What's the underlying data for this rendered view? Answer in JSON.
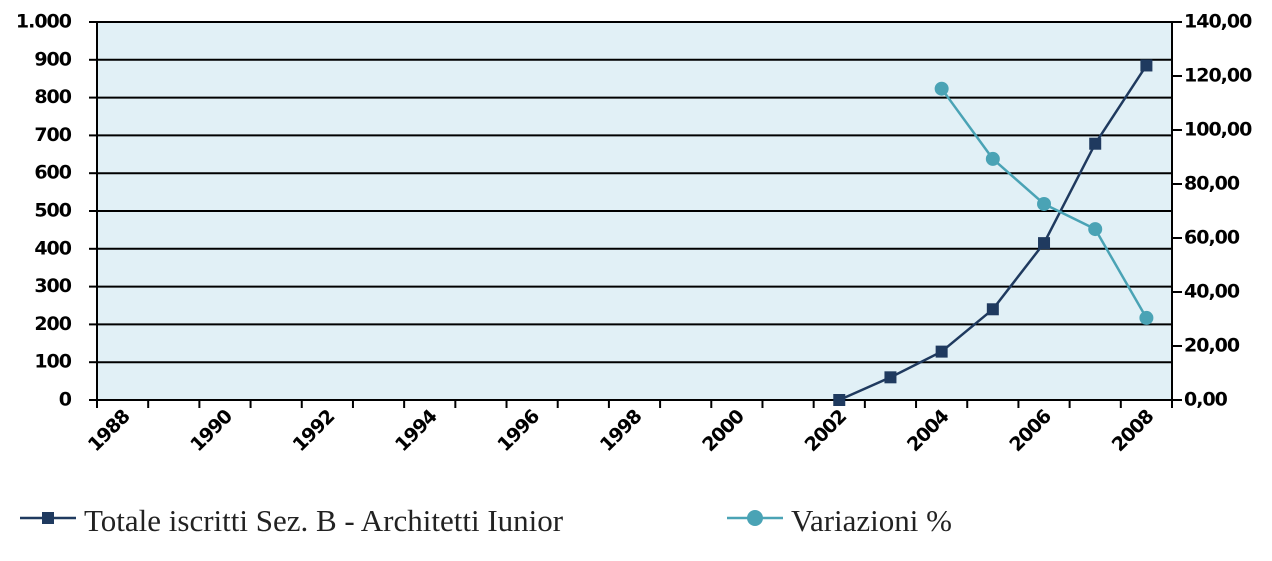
{
  "chart_data": {
    "type": "line",
    "categories": [
      "1988",
      null,
      "1990",
      null,
      "1992",
      null,
      "1994",
      null,
      "1996",
      null,
      "1998",
      null,
      "2000",
      null,
      "2002",
      null,
      "2004",
      null,
      "2006",
      null,
      "2008"
    ],
    "series": [
      {
        "name": "Totale iscritti Sez. B - Architetti Iunior",
        "color": "#1f3a5f",
        "marker": "square",
        "values": [
          null,
          null,
          null,
          null,
          null,
          null,
          null,
          null,
          null,
          null,
          null,
          null,
          null,
          null,
          0,
          60,
          128,
          240,
          415,
          678,
          885
        ]
      },
      {
        "name": "Variazioni %",
        "color": "#4aa3b5",
        "marker": "circle",
        "axis": "y2",
        "values": [
          null,
          null,
          null,
          null,
          null,
          null,
          null,
          null,
          null,
          null,
          null,
          null,
          null,
          null,
          null,
          null,
          115.3,
          89.3,
          72.6,
          63.3,
          30.4
        ]
      }
    ],
    "ylim": [
      0,
      1000
    ],
    "yticks": [
      0,
      100,
      200,
      300,
      400,
      500,
      600,
      700,
      800,
      900,
      {
        "value": 1000,
        "label": "1.000"
      }
    ],
    "y2lim": [
      0,
      140
    ],
    "y2ticks": [
      {
        "value": 0,
        "label": "0,00"
      },
      {
        "value": 20,
        "label": "20,00"
      },
      {
        "value": 40,
        "label": "40,00"
      },
      {
        "value": 60,
        "label": "60,00"
      },
      {
        "value": 80,
        "label": "80,00"
      },
      {
        "value": 100,
        "label": "100,00"
      },
      {
        "value": 120,
        "label": "120,00"
      },
      {
        "value": 140,
        "label": "140,00"
      }
    ],
    "grid": true,
    "legend": "bottom",
    "plot_background": "#e1f0f6"
  }
}
